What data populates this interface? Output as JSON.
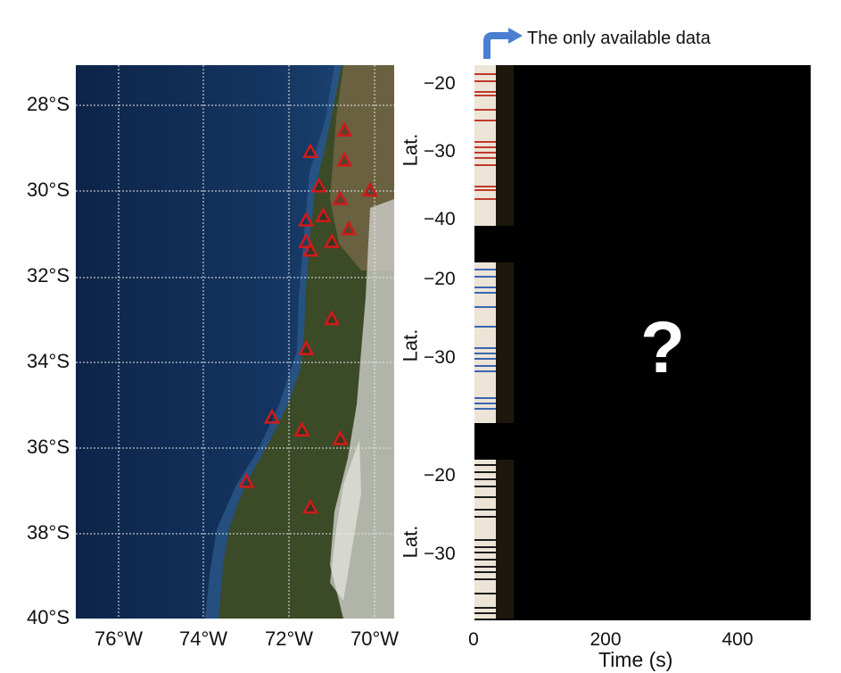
{
  "map": {
    "lat_labels": [
      "28°S",
      "30°S",
      "32°S",
      "34°S",
      "36°S",
      "38°S",
      "40°S"
    ],
    "lon_labels": [
      "76°W",
      "74°W",
      "72°W",
      "70°W"
    ],
    "stations": [
      {
        "lon": -70.7,
        "lat": -28.6
      },
      {
        "lon": -71.5,
        "lat": -29.1
      },
      {
        "lon": -70.7,
        "lat": -29.3
      },
      {
        "lon": -71.3,
        "lat": -29.9
      },
      {
        "lon": -70.1,
        "lat": -30.0
      },
      {
        "lon": -70.8,
        "lat": -30.2
      },
      {
        "lon": -71.2,
        "lat": -30.6
      },
      {
        "lon": -71.6,
        "lat": -30.7
      },
      {
        "lon": -70.6,
        "lat": -30.9
      },
      {
        "lon": -71.6,
        "lat": -31.2
      },
      {
        "lon": -71.0,
        "lat": -31.2
      },
      {
        "lon": -71.5,
        "lat": -31.4
      },
      {
        "lon": -71.0,
        "lat": -33.0
      },
      {
        "lon": -71.6,
        "lat": -33.7
      },
      {
        "lon": -72.4,
        "lat": -35.3
      },
      {
        "lon": -71.7,
        "lat": -35.6
      },
      {
        "lon": -70.8,
        "lat": -35.8
      },
      {
        "lon": -73.0,
        "lat": -36.8
      },
      {
        "lon": -71.5,
        "lat": -37.4
      }
    ],
    "colors": {
      "ocean": "#0f2a4f",
      "land": "#3a4a28",
      "snow": "#d9d9d4",
      "station": "#d11a1a"
    }
  },
  "annotation": {
    "text": "The only available data",
    "arrow_color": "#4a7fd1"
  },
  "panels": [
    {
      "ylabel": "Lat.",
      "ticks": [
        "−20",
        "−30",
        "−40"
      ],
      "color": "#c0392b"
    },
    {
      "ylabel": "Lat.",
      "ticks": [
        "−20",
        "−30"
      ],
      "color": "#3a66b0"
    },
    {
      "ylabel": "Lat.",
      "ticks": [
        "−20",
        "−30"
      ],
      "color": "#1b1b1b"
    }
  ],
  "xaxis": {
    "ticks": [
      "0",
      "200",
      "400"
    ],
    "label": "Time (s)"
  },
  "unknown_mark": "?"
}
